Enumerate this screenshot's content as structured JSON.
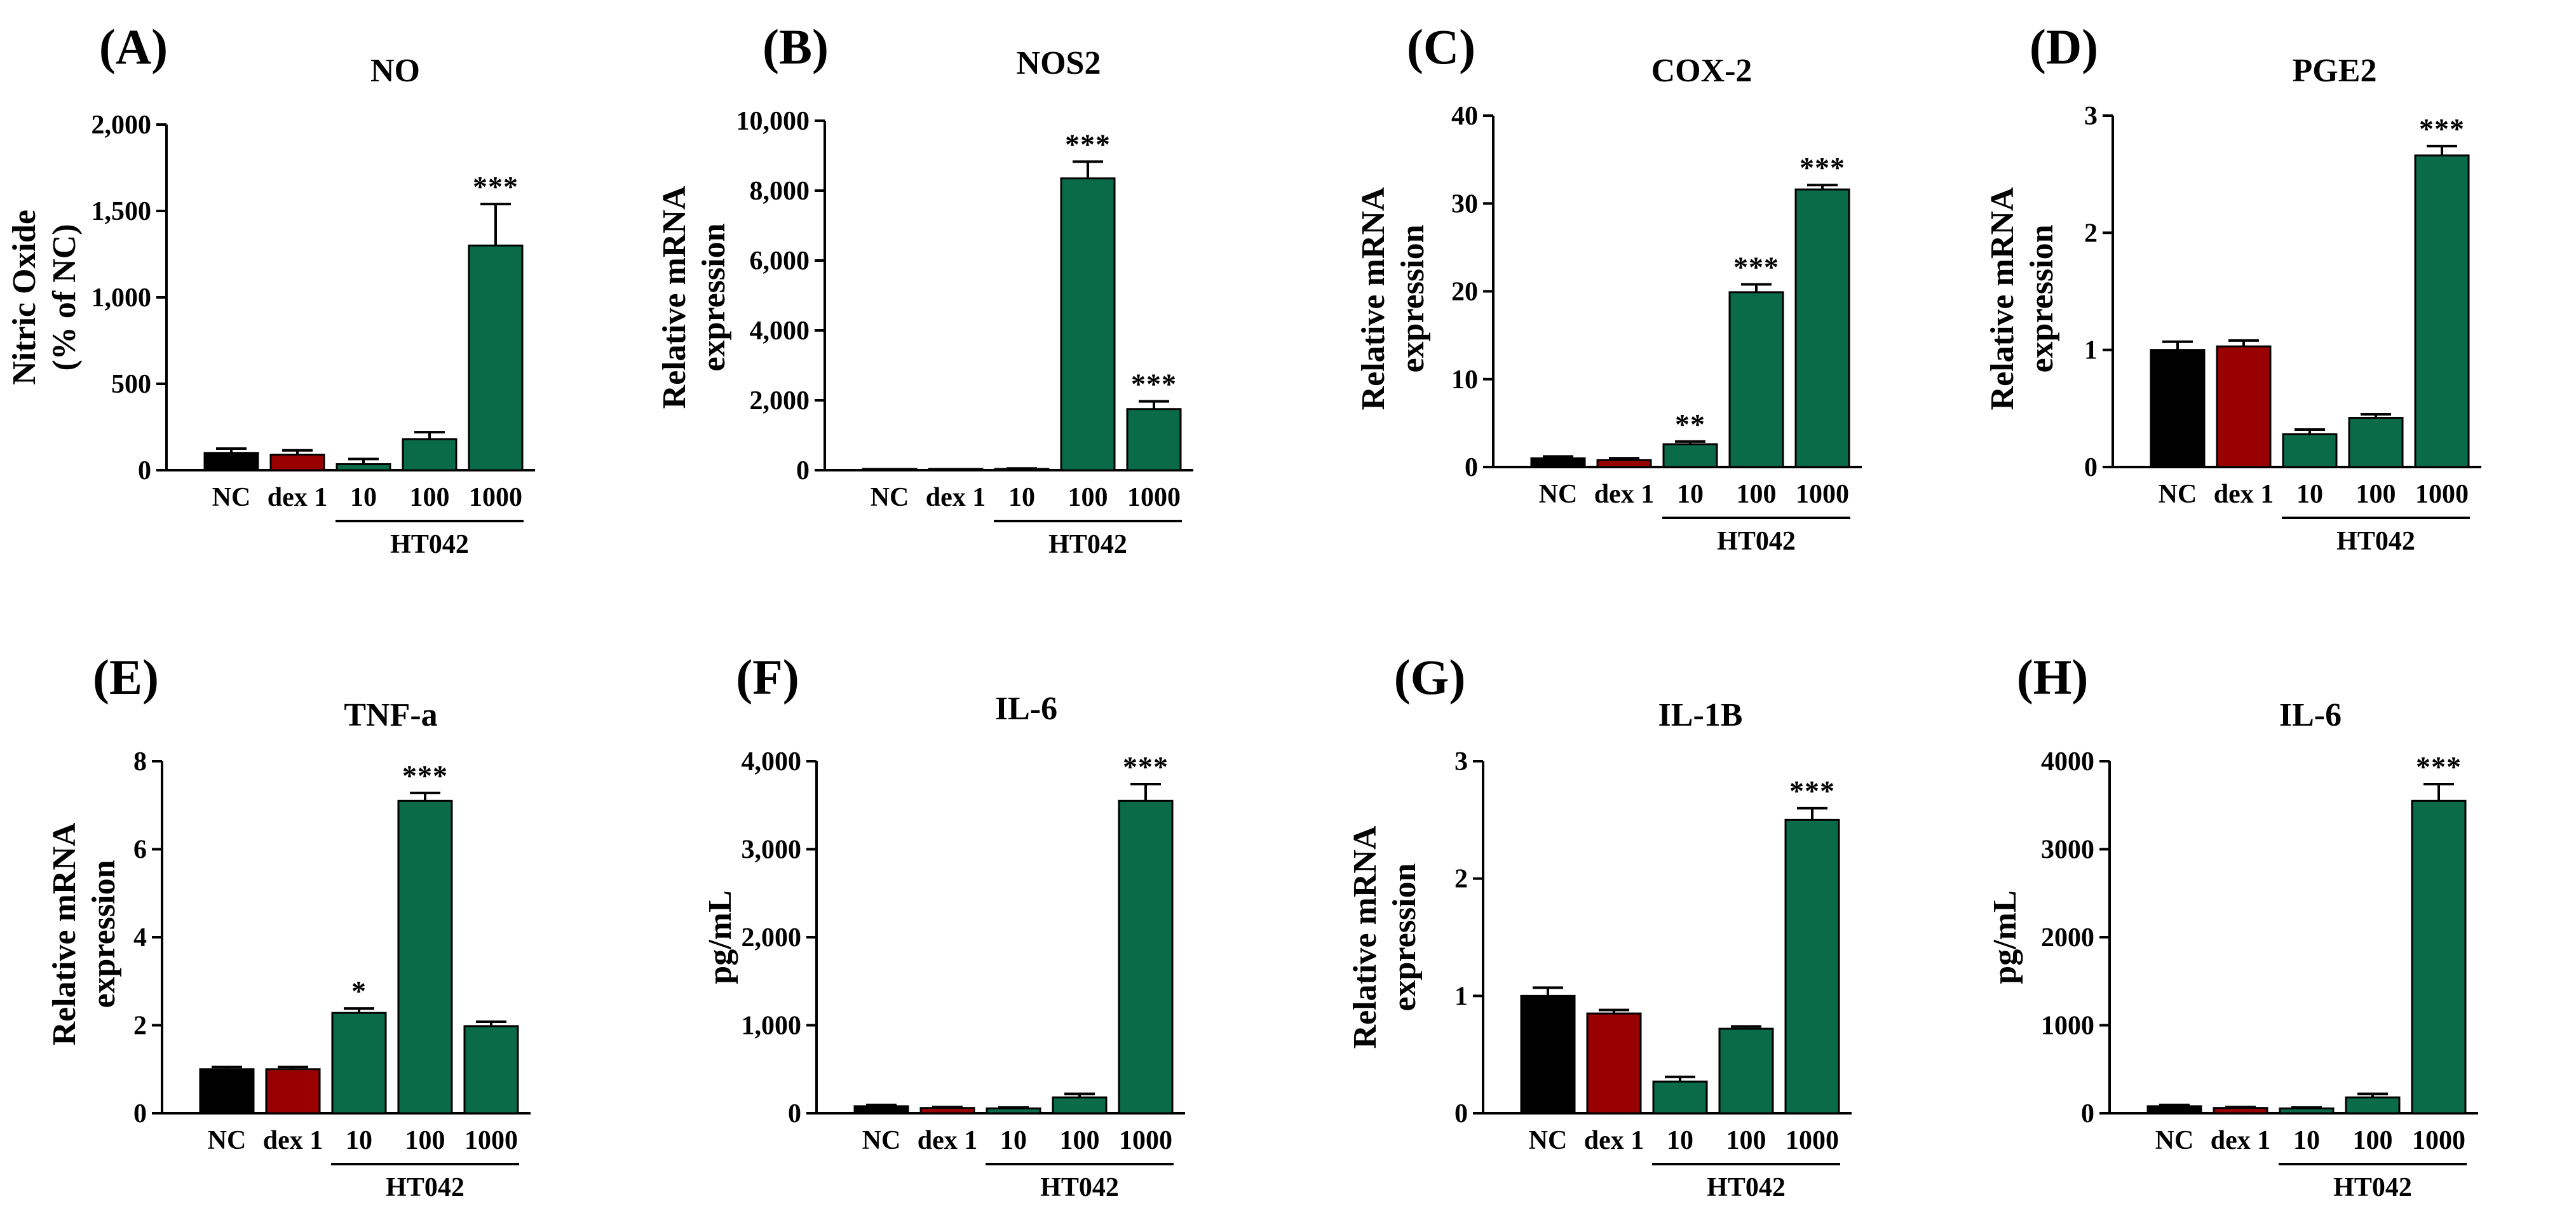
{
  "colors": {
    "nc": "#000000",
    "dex": "#990000",
    "ht": "#0a6b48"
  },
  "chart_data": [
    {
      "type": "bar",
      "panel": "(A)",
      "title": "NO",
      "ylabel": [
        "Nitric Oxide",
        "(% of NC)"
      ],
      "categories": [
        "NC",
        "dex 1",
        "10",
        "100",
        "1000"
      ],
      "group_label": "HT042",
      "values": [
        100,
        90,
        35,
        180,
        1300
      ],
      "errors": [
        25,
        25,
        30,
        40,
        240
      ],
      "significance": [
        "",
        "",
        "",
        "",
        "***"
      ],
      "ylim": [
        0,
        2000
      ],
      "yticks": [
        0,
        500,
        1000,
        1500,
        2000
      ],
      "ytick_labels": [
        "0",
        "500",
        "1,000",
        "1,500",
        "2,000"
      ]
    },
    {
      "type": "bar",
      "panel": "(B)",
      "title": "NOS2",
      "ylabel": [
        "Relative mRNA",
        "expression"
      ],
      "categories": [
        "NC",
        "dex 1",
        "10",
        "100",
        "1000"
      ],
      "group_label": "HT042",
      "values": [
        1,
        1,
        30,
        8350,
        1750
      ],
      "errors": [
        0,
        0,
        20,
        480,
        220
      ],
      "significance": [
        "",
        "",
        "",
        "***",
        "***"
      ],
      "ylim": [
        0,
        10000
      ],
      "yticks": [
        0,
        2000,
        4000,
        6000,
        8000,
        10000
      ],
      "ytick_labels": [
        "0",
        "2,000",
        "4,000",
        "6,000",
        "8,000",
        "10,000"
      ]
    },
    {
      "type": "bar",
      "panel": "(C)",
      "title": "COX-2",
      "ylabel": [
        "Relative mRNA",
        "expression"
      ],
      "categories": [
        "NC",
        "dex 1",
        "10",
        "100",
        "1000"
      ],
      "group_label": "HT042",
      "values": [
        1,
        0.8,
        2.6,
        19.9,
        31.6
      ],
      "errors": [
        0.2,
        0.2,
        0.3,
        0.9,
        0.5
      ],
      "significance": [
        "",
        "",
        "**",
        "***",
        "***"
      ],
      "ylim": [
        0,
        40
      ],
      "yticks": [
        0,
        10,
        20,
        30,
        40
      ],
      "ytick_labels": [
        "0",
        "10",
        "20",
        "30",
        "40"
      ]
    },
    {
      "type": "bar",
      "panel": "(D)",
      "title": "PGE2",
      "ylabel": [
        "Relative mRNA",
        "expression"
      ],
      "categories": [
        "NC",
        "dex 1",
        "10",
        "100",
        "1000"
      ],
      "group_label": "HT042",
      "values": [
        1.0,
        1.03,
        0.28,
        0.42,
        2.66
      ],
      "errors": [
        0.07,
        0.05,
        0.04,
        0.03,
        0.08
      ],
      "significance": [
        "",
        "",
        "",
        "",
        "***"
      ],
      "ylim": [
        0,
        3
      ],
      "yticks": [
        0,
        1,
        2,
        3
      ],
      "ytick_labels": [
        "0",
        "1",
        "2",
        "3"
      ]
    },
    {
      "type": "bar",
      "panel": "(E)",
      "title": "TNF-a",
      "ylabel": [
        "Relative mRNA",
        "expression"
      ],
      "categories": [
        "NC",
        "dex 1",
        "10",
        "100",
        "1000"
      ],
      "group_label": "HT042",
      "values": [
        1.0,
        1.0,
        2.28,
        7.1,
        1.98
      ],
      "errors": [
        0.05,
        0.05,
        0.1,
        0.18,
        0.1
      ],
      "significance": [
        "",
        "",
        "*",
        "***",
        ""
      ],
      "ylim": [
        0,
        8
      ],
      "yticks": [
        0,
        2,
        4,
        6,
        8
      ],
      "ytick_labels": [
        "0",
        "2",
        "4",
        "6",
        "8"
      ]
    },
    {
      "type": "bar",
      "panel": "(F)",
      "title": "IL-6",
      "ylabel": [
        "pg/mL"
      ],
      "categories": [
        "NC",
        "dex 1",
        "10",
        "100",
        "1000"
      ],
      "group_label": "HT042",
      "values": [
        80,
        60,
        55,
        180,
        3550
      ],
      "errors": [
        15,
        10,
        10,
        40,
        190
      ],
      "significance": [
        "",
        "",
        "",
        "",
        "***"
      ],
      "ylim": [
        0,
        4000
      ],
      "yticks": [
        0,
        1000,
        2000,
        3000,
        4000
      ],
      "ytick_labels": [
        "0",
        "1,000",
        "2,000",
        "3,000",
        "4,000"
      ]
    },
    {
      "type": "bar",
      "panel": "(G)",
      "title": "IL-1B",
      "ylabel": [
        "Relative mRNA",
        "expression"
      ],
      "categories": [
        "NC",
        "dex 1",
        "10",
        "100",
        "1000"
      ],
      "group_label": "HT042",
      "values": [
        1.0,
        0.85,
        0.27,
        0.72,
        2.5
      ],
      "errors": [
        0.07,
        0.03,
        0.04,
        0.02,
        0.1
      ],
      "significance": [
        "",
        "",
        "",
        "",
        "***"
      ],
      "ylim": [
        0,
        3
      ],
      "yticks": [
        0,
        1,
        2,
        3
      ],
      "ytick_labels": [
        "0",
        "1",
        "2",
        "3"
      ]
    },
    {
      "type": "bar",
      "panel": "(H)",
      "title": "IL-6",
      "ylabel": [
        "pg/mL"
      ],
      "categories": [
        "NC",
        "dex 1",
        "10",
        "100",
        "1000"
      ],
      "group_label": "HT042",
      "values": [
        80,
        60,
        55,
        180,
        3550
      ],
      "errors": [
        15,
        10,
        10,
        40,
        190
      ],
      "significance": [
        "",
        "",
        "",
        "",
        "***"
      ],
      "ylim": [
        0,
        4000
      ],
      "yticks": [
        0,
        1000,
        2000,
        3000,
        4000
      ],
      "ytick_labels": [
        "0",
        "1000",
        "2000",
        "3000",
        "4000"
      ]
    }
  ]
}
